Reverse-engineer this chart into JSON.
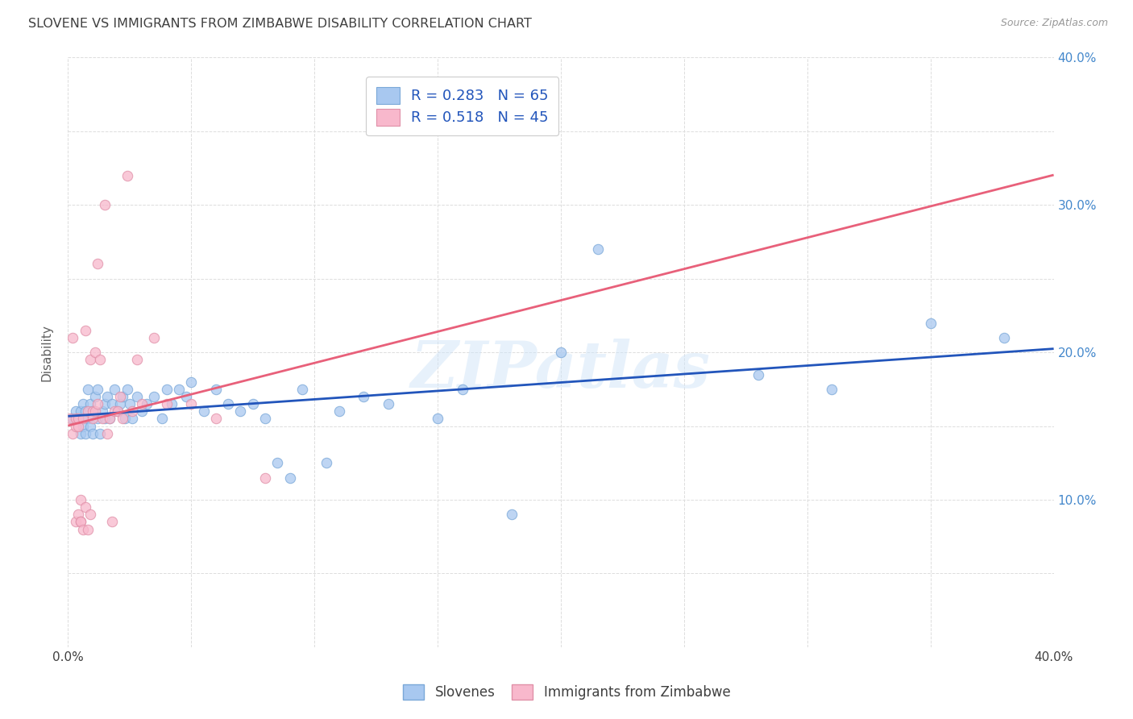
{
  "title": "SLOVENE VS IMMIGRANTS FROM ZIMBABWE DISABILITY CORRELATION CHART",
  "source": "Source: ZipAtlas.com",
  "ylabel": "Disability",
  "xlim": [
    0.0,
    0.4
  ],
  "ylim": [
    0.0,
    0.4
  ],
  "xticks": [
    0.0,
    0.05,
    0.1,
    0.15,
    0.2,
    0.25,
    0.3,
    0.35,
    0.4
  ],
  "yticks": [
    0.0,
    0.05,
    0.1,
    0.15,
    0.2,
    0.25,
    0.3,
    0.35,
    0.4
  ],
  "legend_entries": [
    {
      "label": "Slovenes",
      "R": "0.283",
      "N": "65",
      "dot_color": "#a8c8f0",
      "dot_edge": "#7aa8d8",
      "line_color": "#2255bb"
    },
    {
      "label": "Immigrants from Zimbabwe",
      "R": "0.518",
      "N": "45",
      "dot_color": "#f8b8cc",
      "dot_edge": "#e090a8",
      "line_color": "#e8607a"
    }
  ],
  "slovene_x": [
    0.002,
    0.003,
    0.004,
    0.005,
    0.005,
    0.006,
    0.006,
    0.007,
    0.007,
    0.008,
    0.008,
    0.009,
    0.009,
    0.01,
    0.01,
    0.011,
    0.012,
    0.012,
    0.013,
    0.014,
    0.015,
    0.015,
    0.016,
    0.017,
    0.018,
    0.019,
    0.02,
    0.021,
    0.022,
    0.023,
    0.024,
    0.025,
    0.026,
    0.028,
    0.03,
    0.032,
    0.035,
    0.038,
    0.04,
    0.042,
    0.045,
    0.048,
    0.05,
    0.055,
    0.06,
    0.065,
    0.07,
    0.075,
    0.08,
    0.085,
    0.09,
    0.095,
    0.105,
    0.11,
    0.12,
    0.13,
    0.15,
    0.16,
    0.18,
    0.2,
    0.215,
    0.28,
    0.31,
    0.35,
    0.38
  ],
  "slovene_y": [
    0.155,
    0.16,
    0.155,
    0.145,
    0.16,
    0.15,
    0.165,
    0.145,
    0.16,
    0.155,
    0.175,
    0.15,
    0.165,
    0.145,
    0.16,
    0.17,
    0.155,
    0.175,
    0.145,
    0.16,
    0.165,
    0.155,
    0.17,
    0.155,
    0.165,
    0.175,
    0.16,
    0.165,
    0.17,
    0.155,
    0.175,
    0.165,
    0.155,
    0.17,
    0.16,
    0.165,
    0.17,
    0.155,
    0.175,
    0.165,
    0.175,
    0.17,
    0.18,
    0.16,
    0.175,
    0.165,
    0.16,
    0.165,
    0.155,
    0.125,
    0.115,
    0.175,
    0.125,
    0.16,
    0.17,
    0.165,
    0.155,
    0.175,
    0.09,
    0.2,
    0.27,
    0.185,
    0.175,
    0.22,
    0.21
  ],
  "zimbabwe_x": [
    0.001,
    0.002,
    0.002,
    0.003,
    0.003,
    0.003,
    0.004,
    0.004,
    0.004,
    0.005,
    0.005,
    0.005,
    0.006,
    0.006,
    0.007,
    0.007,
    0.008,
    0.008,
    0.009,
    0.009,
    0.01,
    0.01,
    0.011,
    0.011,
    0.012,
    0.012,
    0.013,
    0.014,
    0.015,
    0.016,
    0.017,
    0.018,
    0.019,
    0.02,
    0.021,
    0.022,
    0.024,
    0.026,
    0.028,
    0.03,
    0.035,
    0.04,
    0.05,
    0.06,
    0.08
  ],
  "zimbabwe_y": [
    0.155,
    0.145,
    0.21,
    0.15,
    0.155,
    0.085,
    0.15,
    0.155,
    0.09,
    0.085,
    0.085,
    0.1,
    0.08,
    0.155,
    0.095,
    0.215,
    0.08,
    0.16,
    0.09,
    0.195,
    0.16,
    0.155,
    0.16,
    0.2,
    0.165,
    0.26,
    0.195,
    0.155,
    0.3,
    0.145,
    0.155,
    0.085,
    0.16,
    0.16,
    0.17,
    0.155,
    0.32,
    0.16,
    0.195,
    0.165,
    0.21,
    0.165,
    0.165,
    0.155,
    0.115
  ],
  "watermark": "ZIPatlas",
  "background_color": "#ffffff",
  "grid_color": "#dddddd",
  "title_color": "#404040",
  "title_fontsize": 11.5,
  "axis_label_color": "#606060",
  "tick_label_color_right": "#4488cc",
  "tick_label_color_bottom": "#404040",
  "source_color": "#999999"
}
